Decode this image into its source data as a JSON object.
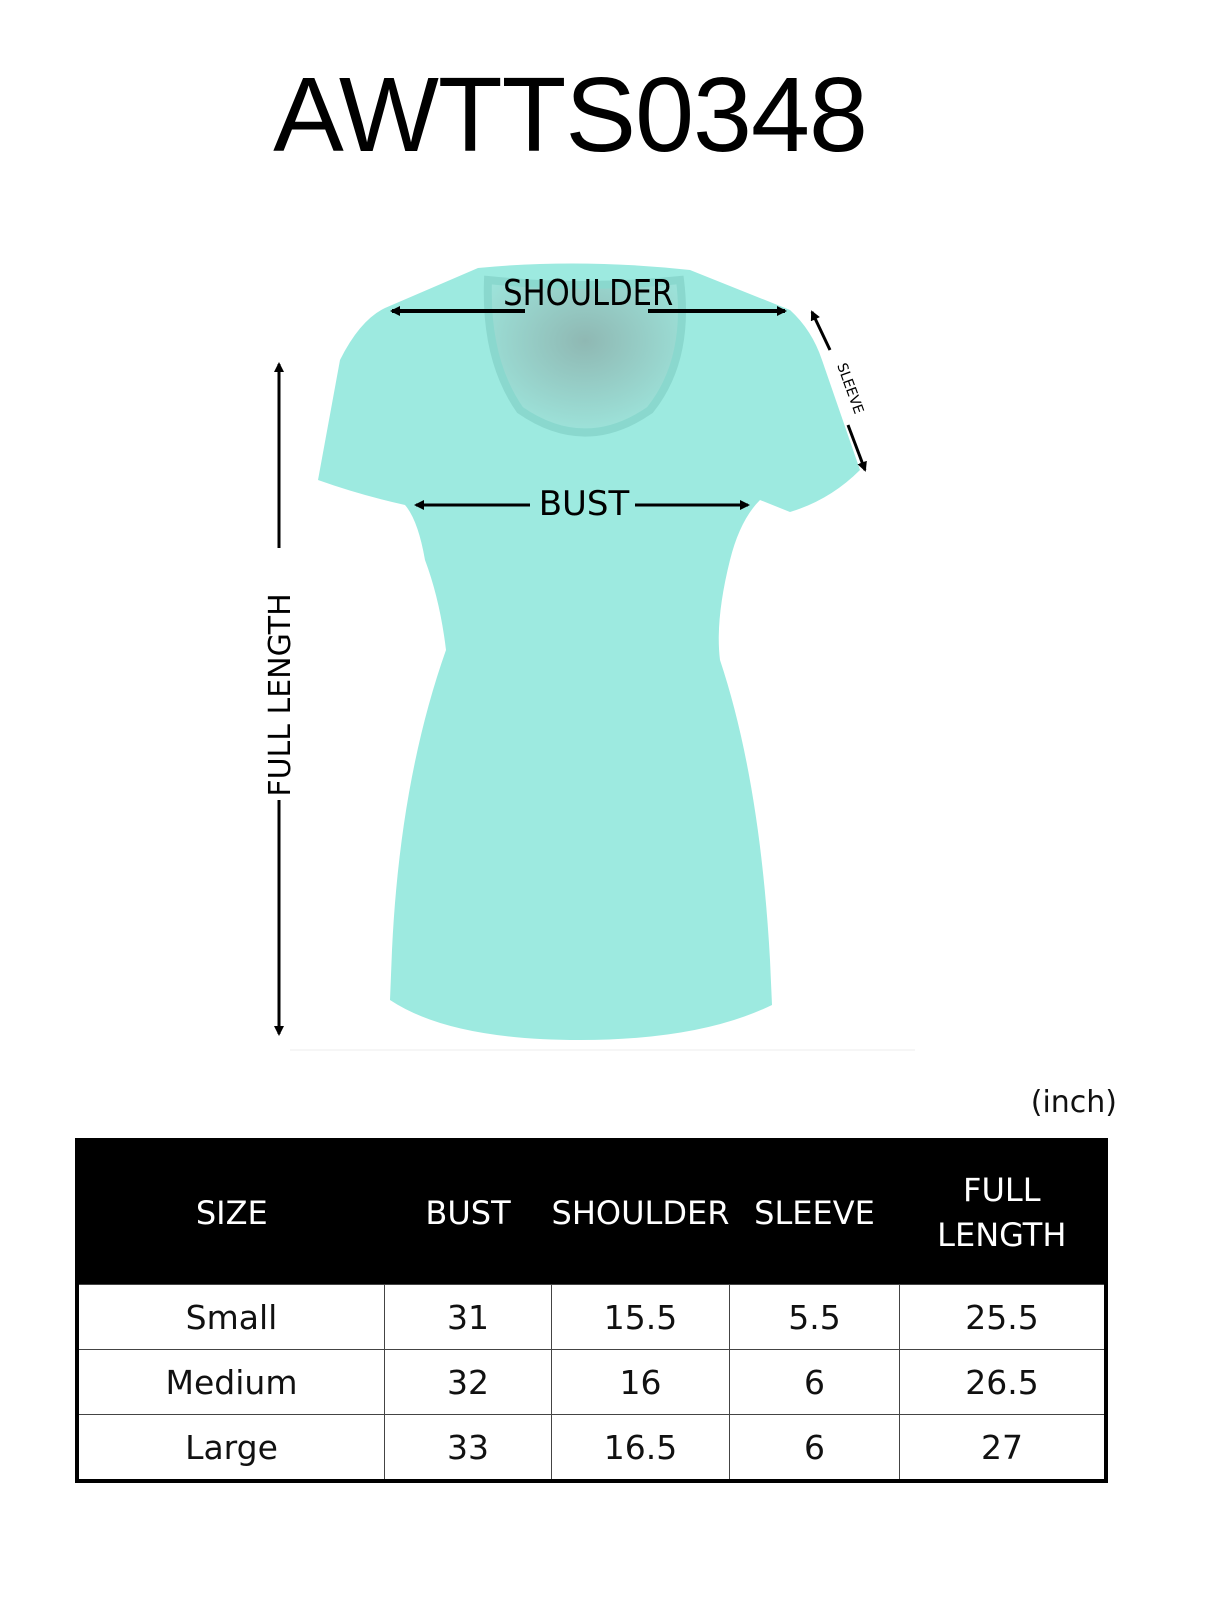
{
  "title": "AWTTS0348",
  "diagram": {
    "labels": {
      "shoulder": "SHOULDER",
      "bust": "BUST",
      "sleeve": "SLEEVE",
      "full_length": "FULL LENGTH"
    },
    "garment_color": "#9deae0"
  },
  "unit": "(inch)",
  "table": {
    "headers": [
      "SIZE",
      "BUST",
      "SHOULDER",
      "SLEEVE",
      "FULL LENGTH"
    ],
    "rows": [
      [
        "Small",
        "31",
        "15.5",
        "5.5",
        "25.5"
      ],
      [
        "Medium",
        "32",
        "16",
        "6",
        "26.5"
      ],
      [
        "Large",
        "33",
        "16.5",
        "6",
        "27"
      ]
    ]
  }
}
